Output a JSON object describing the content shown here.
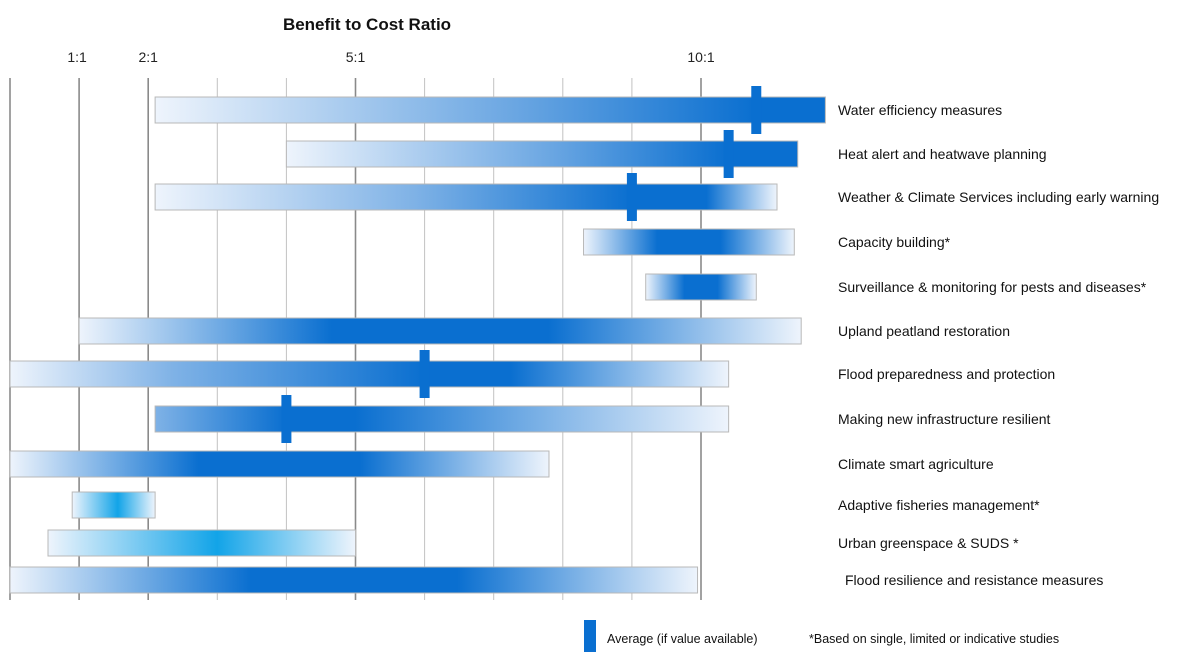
{
  "chart_data": {
    "type": "bar",
    "orientation": "horizontal-range",
    "title": "Benefit to Cost Ratio",
    "xlabel": "Benefit to Cost Ratio",
    "x_ticks": [
      {
        "value": 1,
        "label": "1:1"
      },
      {
        "value": 2,
        "label": "2:1"
      },
      {
        "value": 5,
        "label": "5:1"
      },
      {
        "value": 10,
        "label": "10:1"
      }
    ],
    "xlim": [
      0,
      11.8
    ],
    "grid": true,
    "categories": [
      "Water efficiency measures",
      "Heat alert and heatwave planning",
      "Weather & Climate Services including  early warning",
      "Capacity building*",
      "Surveillance  & monitoring for pests and diseases*",
      "Upland peatland restoration",
      "Flood preparedness and protection",
      "Making new infrastructure resilient",
      "Climate smart agriculture",
      "Adaptive  fisheries management*",
      "Urban greenspace & SUDS *",
      "Flood resilience and resistance measures"
    ],
    "ranges": [
      {
        "low": 2.1,
        "high": 11.8,
        "average": 10.8
      },
      {
        "low": 4.0,
        "high": 11.4,
        "average": 10.4
      },
      {
        "low": 2.1,
        "high": 11.1,
        "average": 9.0
      },
      {
        "low": 8.3,
        "high": 11.35,
        "average": null
      },
      {
        "low": 9.2,
        "high": 10.8,
        "average": null
      },
      {
        "low": 1.0,
        "high": 11.45,
        "average": null
      },
      {
        "low": 0.0,
        "high": 10.4,
        "average": 6.0
      },
      {
        "low": 2.1,
        "high": 10.4,
        "average": 4.0
      },
      {
        "low": 0.0,
        "high": 7.8,
        "average": null
      },
      {
        "low": 0.9,
        "high": 2.1,
        "average": null
      },
      {
        "low": 0.55,
        "high": 5.0,
        "average": null
      },
      {
        "low": 0.0,
        "high": 9.95,
        "average": null
      }
    ],
    "bar_color": "#0a6fd0",
    "light_color": "#eef4fc",
    "cyan_color": "#12a4e8",
    "legend": {
      "placement": "bottom",
      "average_label": "Average (if value available)",
      "footnote": "*Based on single, limited or indicative studies"
    }
  }
}
